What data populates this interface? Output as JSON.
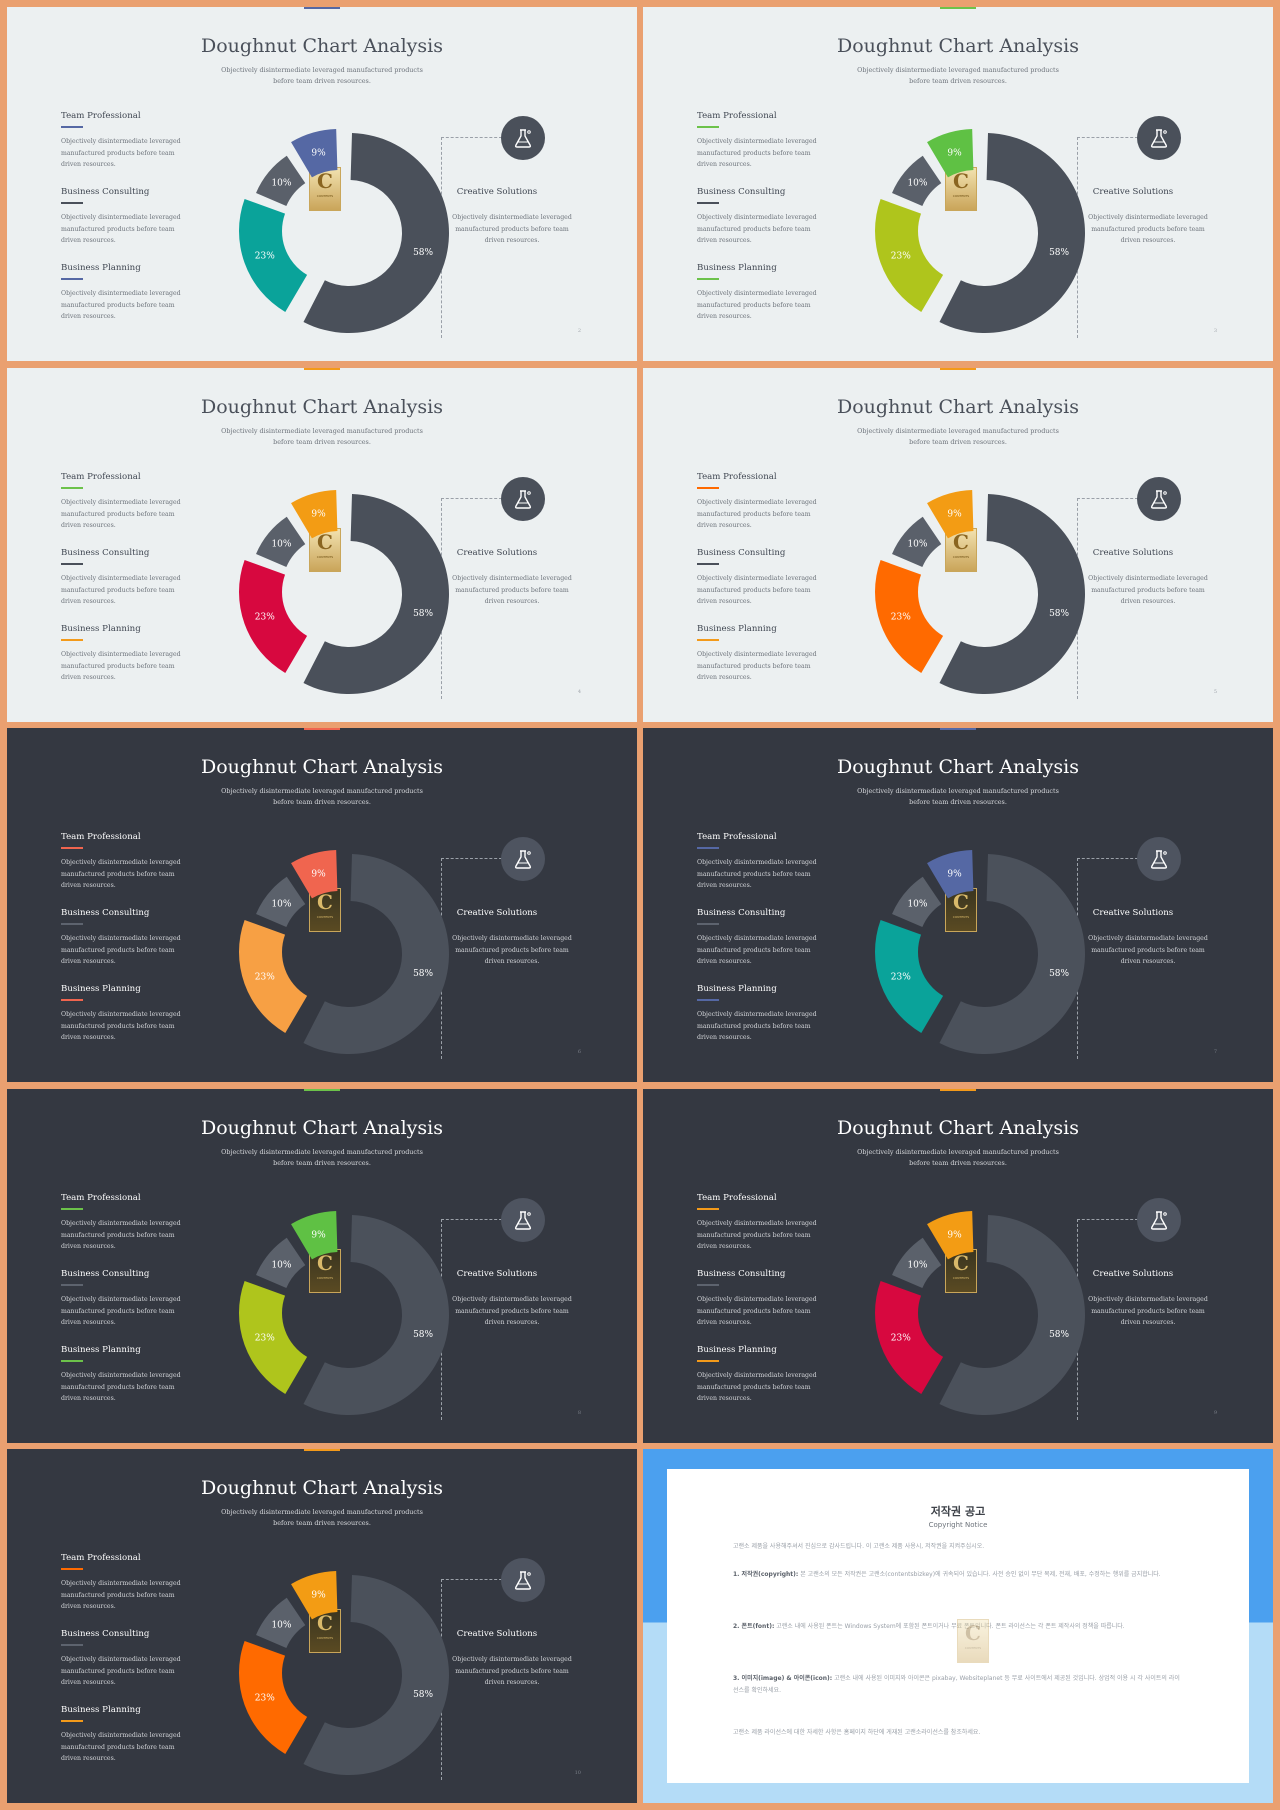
{
  "slides": [
    {
      "page": "2",
      "theme": "light",
      "accent": "#5668a0",
      "mid": "#0aa39a",
      "small": "#5568a4",
      "bar": "#5568a4",
      "r1": "#5568a4",
      "r2": "#4a505a",
      "r3": "#5568a4"
    },
    {
      "page": "3",
      "theme": "light",
      "accent": "#6cc24a",
      "mid": "#afc51c",
      "small": "#5fc144",
      "bar": "#6cc24a",
      "r1": "#6cc24a",
      "r2": "#4a505a",
      "r3": "#6cc24a"
    },
    {
      "page": "4",
      "theme": "light",
      "accent": "#f39a1a",
      "mid": "#d7083f",
      "small": "#f39c14",
      "bar": "#f39a1a",
      "r1": "#6cc24a",
      "r2": "#4a505a",
      "r3": "#f39a1a"
    },
    {
      "page": "5",
      "theme": "light",
      "accent": "#f39a1a",
      "mid": "#ff6a00",
      "small": "#f39c14",
      "bar": "#f39a1a",
      "r1": "#ff6a00",
      "r2": "#4a505a",
      "r3": "#f39a1a"
    },
    {
      "page": "6",
      "theme": "dark",
      "accent": "#f0654f",
      "mid": "#f7a044",
      "small": "#f0654f",
      "bar": "#f0654f",
      "r1": "#f0654f",
      "r2": "#5d636e",
      "r3": "#f0654f"
    },
    {
      "page": "7",
      "theme": "dark",
      "accent": "#5568a4",
      "mid": "#0aa39a",
      "small": "#5568a4",
      "bar": "#5568a4",
      "r1": "#5568a4",
      "r2": "#5d636e",
      "r3": "#5568a4"
    },
    {
      "page": "8",
      "theme": "dark",
      "accent": "#6cc24a",
      "mid": "#afc51c",
      "small": "#5fc144",
      "bar": "#6cc24a",
      "r1": "#6cc24a",
      "r2": "#5d636e",
      "r3": "#6cc24a"
    },
    {
      "page": "9",
      "theme": "dark",
      "accent": "#f39a1a",
      "mid": "#d7083f",
      "small": "#f39c14",
      "bar": "#f39a1a",
      "r1": "#f39a1a",
      "r2": "#5d636e",
      "r3": "#f39a1a"
    },
    {
      "page": "10",
      "theme": "dark",
      "accent": "#f39a1a",
      "mid": "#ff6a00",
      "small": "#f39c14",
      "bar": "#f39a1a",
      "r1": "#ff6a00",
      "r2": "#5d636e",
      "r3": "#f39a1a"
    }
  ],
  "common": {
    "title": "Doughnut Chart Analysis",
    "subtitle": "Objectively disintermediate leveraged manufactured products before team driven resources.",
    "items": [
      {
        "head": "Team Professional",
        "body": "Objectively disintermediate leveraged manufactured products before team driven resources."
      },
      {
        "head": "Business Consulting",
        "body": "Objectively disintermediate leveraged manufactured products before team driven resources."
      },
      {
        "head": "Business Planning",
        "body": "Objectively disintermediate leveraged manufactured products before team driven resources."
      }
    ],
    "cs_title": "Creative Solutions",
    "cs_body": "Objectively disintermediate leveraged manufactured products before team driven resources.",
    "logo_letter": "C",
    "logo_text": "CONTENTS"
  },
  "chart_data": {
    "type": "pie",
    "title": "Doughnut Chart Analysis",
    "categories": [
      "58%",
      "23%",
      "10%",
      "9%"
    ],
    "values": [
      58,
      23,
      10,
      9
    ],
    "labels": [
      "58%",
      "23%",
      "10%",
      "9%"
    ]
  },
  "notice": {
    "title": "저작권 공고",
    "subtitle": "Copyright Notice",
    "intro": "고랜소 제품을 사용해주셔서 진심으로 감사드립니다. 이 고랜소 제품 사용시, 저작권을 지켜주십시오.",
    "p1_head": "1. 저작권(copyright):",
    "p1": "본 고랜소의 모든 저작권은 고랜소(contentsbizkey)에 귀속되어 있습니다. 사전 승인 없이 무단 복제, 전재, 배포, 수정하는 행위를 금지합니다.",
    "p2_head": "2. 폰트(font):",
    "p2": "고랜소 내에 사용된 폰트는 Windows System에 포함된 폰트이거나 무료 폰트입니다. 폰트 라이선스는 각 폰트 제작사의 정책을 따릅니다.",
    "p3_head": "3. 이미지(image) & 아이콘(icon):",
    "p3": "고랜소 내에 사용된 이미지와 아이콘은 pixabay, Websiteplanet 등 무료 사이트에서 제공된 것입니다. 상업적 이용 시 각 사이트의 라이선스를 확인하세요.",
    "closing": "고랜소 제품 라이선스에 대한 자세한 사항은 홈페이지 하단에 게재된 고랜소라이선스를 참조하세요."
  }
}
